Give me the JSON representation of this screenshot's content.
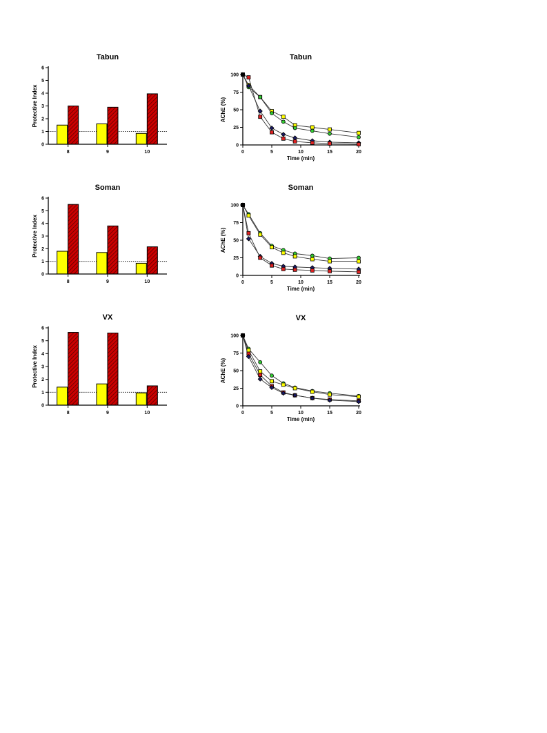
{
  "chart_data": [
    {
      "type": "bar",
      "title": "Tabun",
      "xlabel": "",
      "ylabel": "Protective Index",
      "ylim": [
        0,
        6
      ],
      "yticks": [
        0,
        1,
        2,
        3,
        4,
        5,
        6
      ],
      "categories": [
        "8",
        "9",
        "10"
      ],
      "reference_line": 1,
      "series": [
        {
          "color": "#ffff00",
          "pattern": "solid",
          "values": [
            1.5,
            1.6,
            0.85
          ]
        },
        {
          "color": "#cc0000",
          "pattern": "hatched",
          "values": [
            3.0,
            2.9,
            3.95
          ]
        }
      ]
    },
    {
      "type": "line",
      "title": "Tabun",
      "xlabel": "Time (min)",
      "ylabel": "AChE (%)",
      "xlim": [
        0,
        20
      ],
      "ylim": [
        0,
        100
      ],
      "xticks": [
        0,
        5,
        10,
        15,
        20
      ],
      "yticks": [
        0,
        25,
        50,
        75,
        100
      ],
      "x": [
        0,
        1,
        3,
        5,
        7,
        9,
        12,
        15,
        20
      ],
      "series": [
        {
          "color": "#ffff00",
          "marker": "square",
          "values": [
            100,
            85,
            68,
            48,
            40,
            28,
            25,
            22,
            17
          ]
        },
        {
          "color": "#33cc33",
          "marker": "circle",
          "values": [
            100,
            82,
            68,
            45,
            33,
            24,
            20,
            16,
            11
          ]
        },
        {
          "color": "#1a1a66",
          "marker": "diamond",
          "values": [
            100,
            84,
            48,
            24,
            15,
            10,
            6,
            4,
            3
          ]
        },
        {
          "color": "#dd2222",
          "marker": "square",
          "values": [
            100,
            96,
            40,
            18,
            9,
            5,
            3,
            2,
            1
          ]
        }
      ]
    },
    {
      "type": "bar",
      "title": "Soman",
      "xlabel": "",
      "ylabel": "Protective Index",
      "ylim": [
        0,
        6
      ],
      "yticks": [
        0,
        1,
        2,
        3,
        4,
        5,
        6
      ],
      "categories": [
        "8",
        "9",
        "10"
      ],
      "reference_line": 1,
      "series": [
        {
          "color": "#ffff00",
          "pattern": "solid",
          "values": [
            1.8,
            1.7,
            0.85
          ]
        },
        {
          "color": "#cc0000",
          "pattern": "hatched",
          "values": [
            5.5,
            3.8,
            2.15
          ]
        }
      ]
    },
    {
      "type": "line",
      "title": "Soman",
      "xlabel": "Time (min)",
      "ylabel": "AChE (%)",
      "xlim": [
        0,
        20
      ],
      "ylim": [
        0,
        100
      ],
      "xticks": [
        0,
        5,
        10,
        15,
        20
      ],
      "yticks": [
        0,
        25,
        50,
        75,
        100
      ],
      "x": [
        0,
        1,
        3,
        5,
        7,
        9,
        12,
        15,
        20
      ],
      "series": [
        {
          "color": "#33cc33",
          "marker": "circle",
          "values": [
            100,
            87,
            60,
            42,
            36,
            31,
            28,
            24,
            25
          ]
        },
        {
          "color": "#ffff00",
          "marker": "square",
          "values": [
            100,
            85,
            58,
            40,
            32,
            27,
            23,
            20,
            20
          ]
        },
        {
          "color": "#1a1a66",
          "marker": "diamond",
          "values": [
            100,
            52,
            27,
            17,
            13,
            12,
            11,
            10,
            9
          ]
        },
        {
          "color": "#dd2222",
          "marker": "square",
          "values": [
            100,
            60,
            25,
            14,
            9,
            8,
            7,
            6,
            5
          ]
        }
      ]
    },
    {
      "type": "bar",
      "title": "VX",
      "xlabel": "",
      "ylabel": "Protective Index",
      "ylim": [
        0,
        6
      ],
      "yticks": [
        0,
        1,
        2,
        3,
        4,
        5,
        6
      ],
      "categories": [
        "8",
        "9",
        "10"
      ],
      "reference_line": 1,
      "series": [
        {
          "color": "#ffff00",
          "pattern": "solid",
          "values": [
            1.4,
            1.65,
            0.95
          ]
        },
        {
          "color": "#cc0000",
          "pattern": "hatched",
          "values": [
            5.65,
            5.6,
            1.5
          ]
        }
      ]
    },
    {
      "type": "line",
      "title": "VX",
      "xlabel": "Time (min)",
      "ylabel": "AChE (%)",
      "xlim": [
        0,
        20
      ],
      "ylim": [
        0,
        100
      ],
      "xticks": [
        0,
        5,
        10,
        15,
        20
      ],
      "yticks": [
        0,
        25,
        50,
        75,
        100
      ],
      "x": [
        0,
        1,
        3,
        5,
        7,
        9,
        12,
        15,
        20
      ],
      "series": [
        {
          "color": "#33cc33",
          "marker": "circle",
          "values": [
            100,
            81,
            62,
            43,
            32,
            26,
            21,
            18,
            14
          ]
        },
        {
          "color": "#ffff00",
          "marker": "square",
          "values": [
            100,
            79,
            49,
            35,
            30,
            25,
            20,
            16,
            13
          ]
        },
        {
          "color": "#dd2222",
          "marker": "square",
          "values": [
            100,
            74,
            44,
            28,
            19,
            15,
            11,
            9,
            7
          ]
        },
        {
          "color": "#1a1a66",
          "marker": "diamond",
          "values": [
            100,
            70,
            38,
            26,
            18,
            15,
            11,
            8,
            6
          ]
        }
      ]
    }
  ]
}
